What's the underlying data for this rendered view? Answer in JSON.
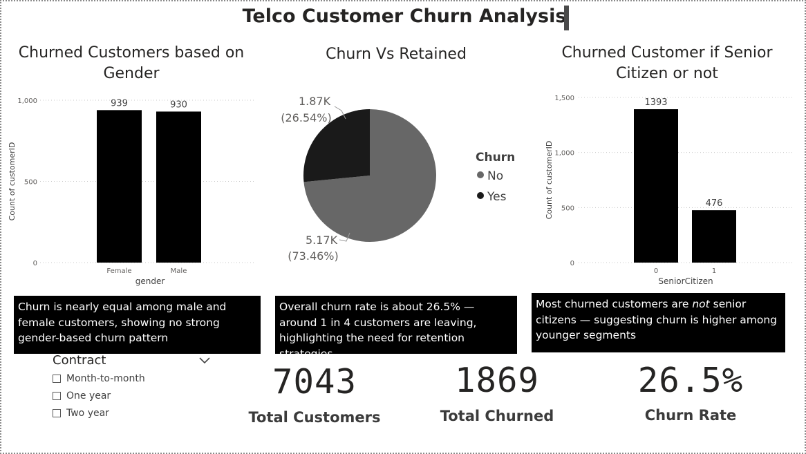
{
  "page_title": "Telco Customer Churn Analysis",
  "chart_data": [
    {
      "type": "bar",
      "title": "Churned Customers based on Gender",
      "xlabel": "gender",
      "ylabel": "Count of customerID",
      "categories": [
        "Female",
        "Male"
      ],
      "values": [
        939,
        930
      ],
      "data_labels": [
        "939",
        "930"
      ],
      "ylim": [
        0,
        1000
      ],
      "yticks": [
        0,
        500,
        1000
      ],
      "ytick_labels": [
        "0",
        "500",
        "1,000"
      ],
      "grid": true,
      "color": "#000000"
    },
    {
      "type": "pie",
      "title": "Churn Vs Retained",
      "legend_title": "Churn",
      "legend_position": "right",
      "categories": [
        "No",
        "Yes"
      ],
      "values": [
        5170,
        1870
      ],
      "percents": [
        73.46,
        26.54
      ],
      "value_labels": [
        "5.17K",
        "1.87K"
      ],
      "percent_labels": [
        "(73.46%)",
        "(26.54%)"
      ],
      "colors": [
        "#676767",
        "#1a1a1a"
      ]
    },
    {
      "type": "bar",
      "title": "Churned Customer if Senior Citizen or not",
      "xlabel": "SeniorCitizen",
      "ylabel": "Count of customerID",
      "categories": [
        "0",
        "1"
      ],
      "values": [
        1393,
        476
      ],
      "data_labels": [
        "1393",
        "476"
      ],
      "ylim": [
        0,
        1500
      ],
      "yticks": [
        0,
        500,
        1000,
        1500
      ],
      "ytick_labels": [
        "0",
        "500",
        "1,000",
        "1,500"
      ],
      "grid": true,
      "color": "#000000"
    }
  ],
  "notes": {
    "gender": "Churn is nearly equal among male and female customers, showing no strong gender-based churn pattern",
    "overall": "Overall churn rate is about 26.5% — around 1 in 4 customers are leaving, highlighting the need for retention strategies.",
    "senior_before": "Most churned customers are ",
    "senior_em": "not",
    "senior_after": " senior citizens — suggesting churn is higher among younger segments"
  },
  "slicer": {
    "title": "Contract",
    "items": [
      "Month-to-month",
      "One year",
      "Two year"
    ]
  },
  "kpis": [
    {
      "value": "7043",
      "label": "Total Customers"
    },
    {
      "value": "1869",
      "label": "Total Churned"
    },
    {
      "value": "26.5%",
      "label": "Churn Rate"
    }
  ]
}
